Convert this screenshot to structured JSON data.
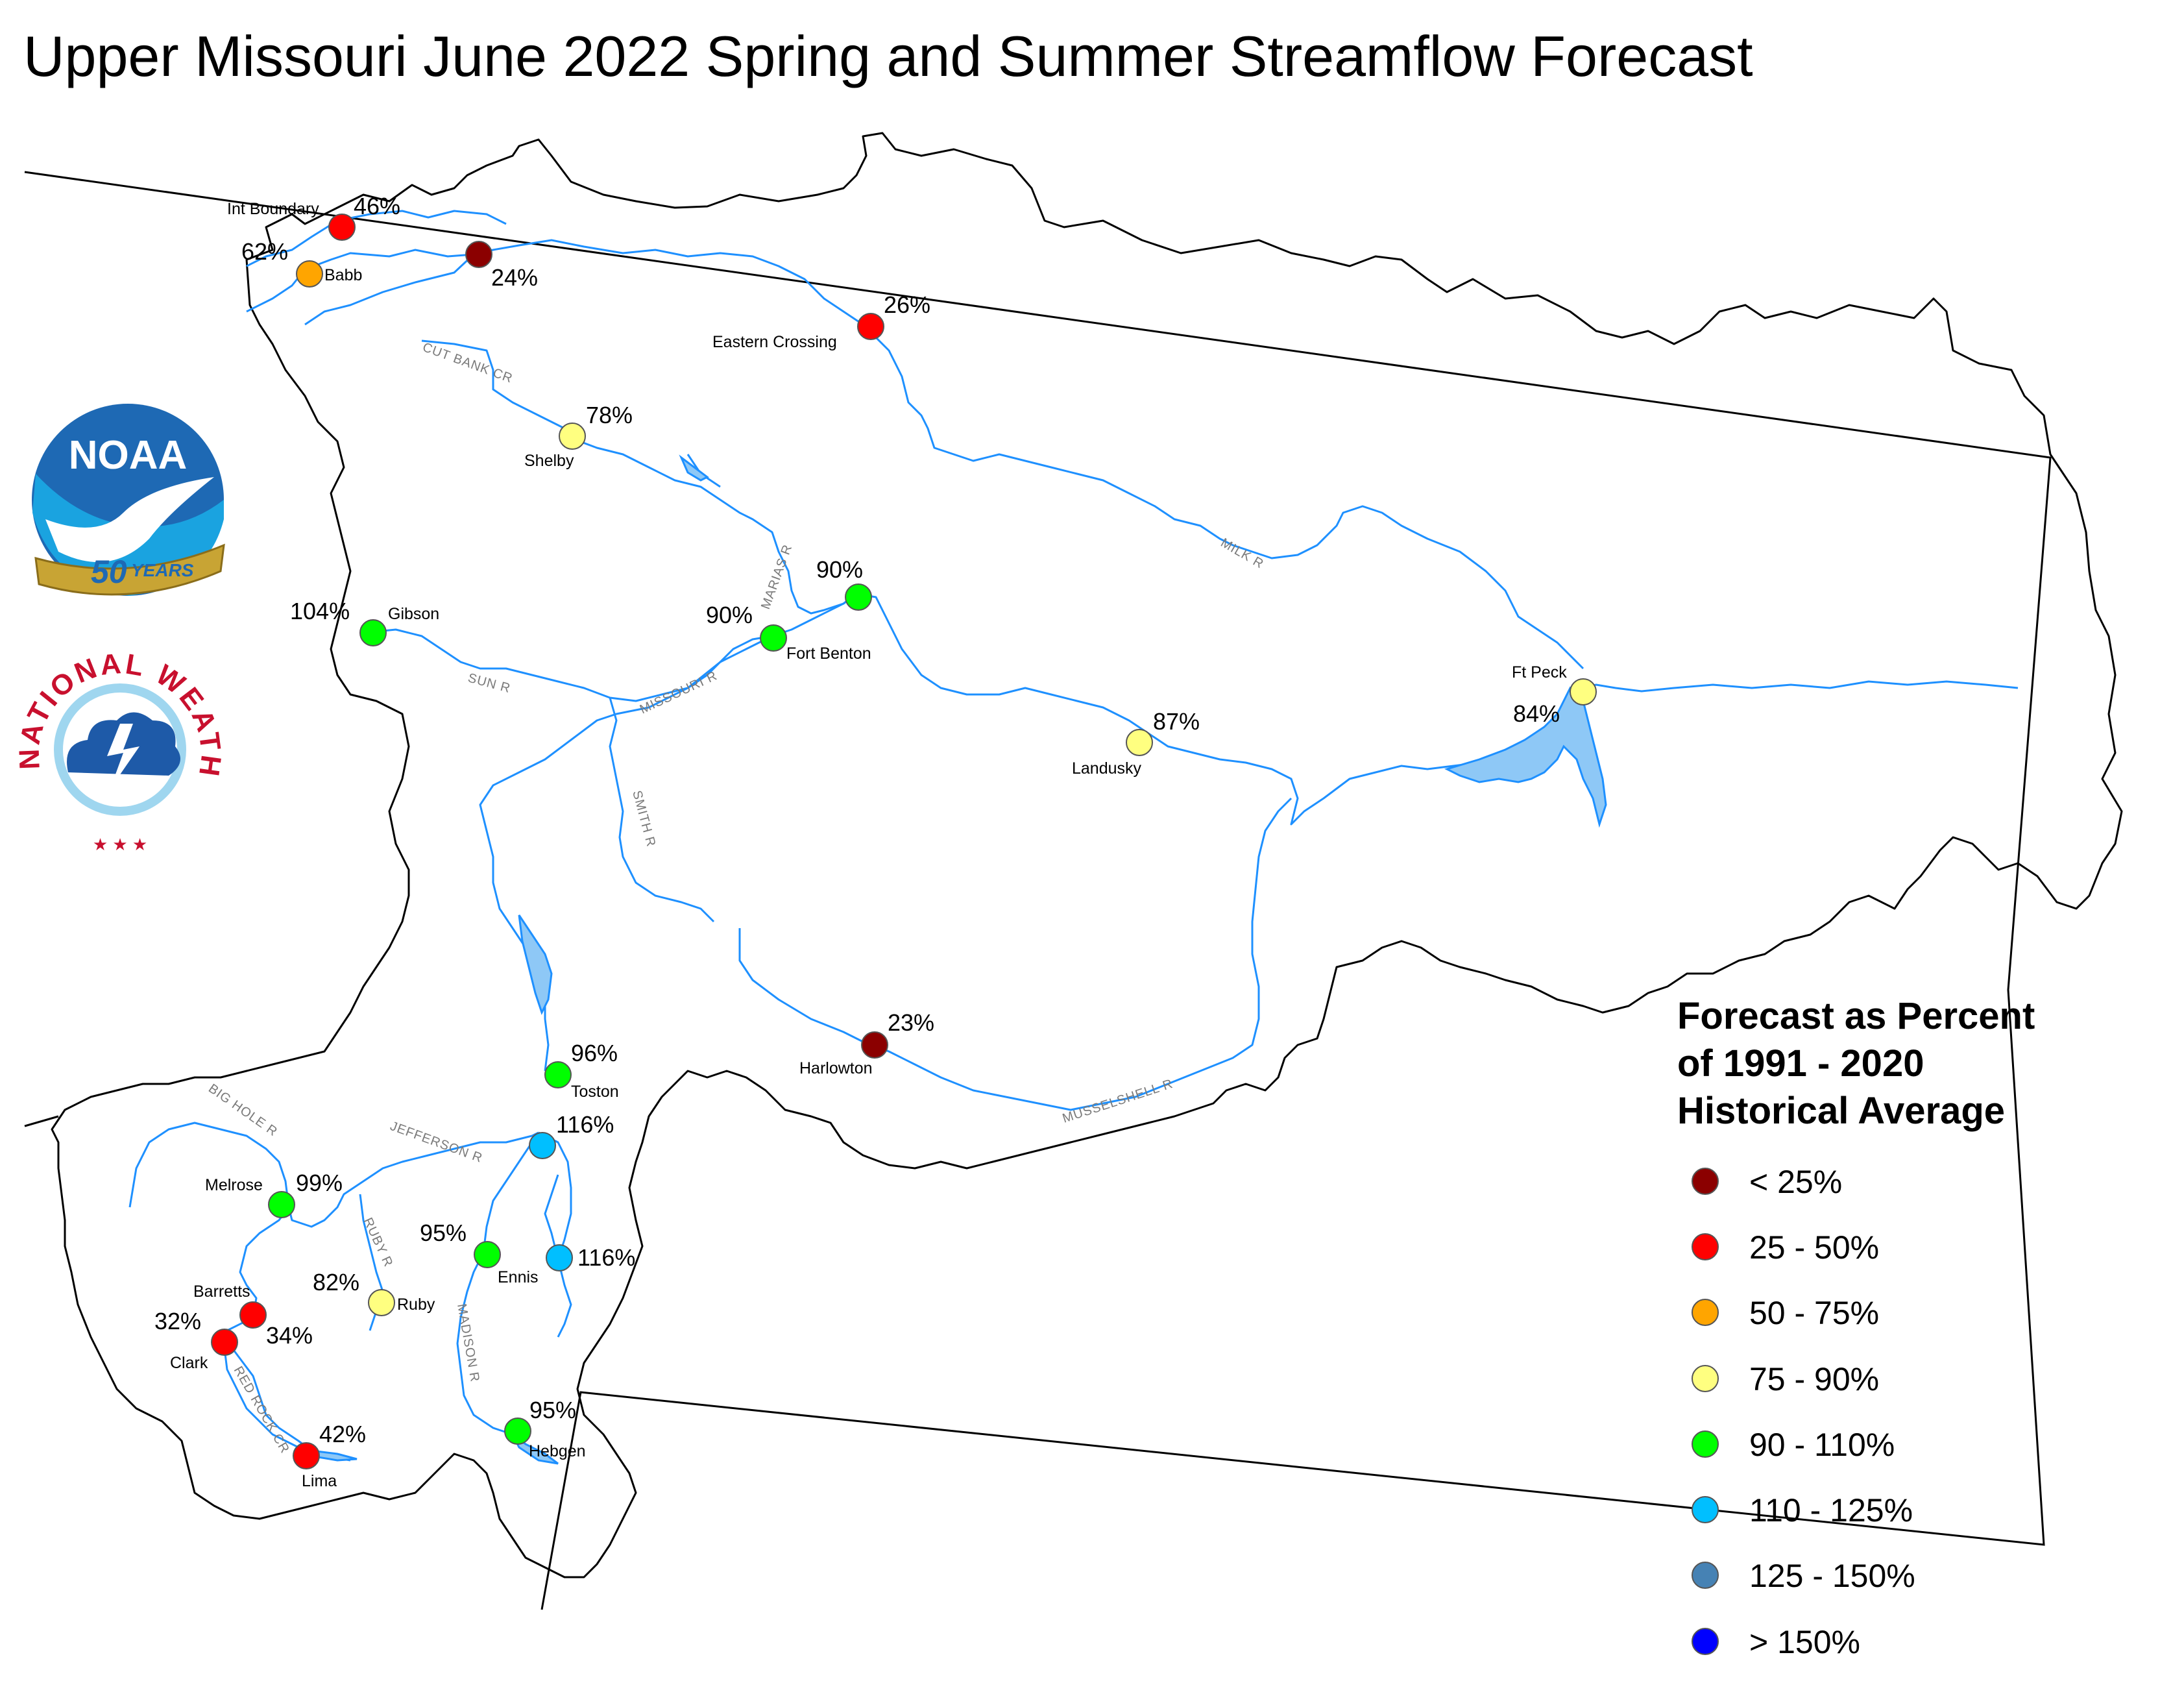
{
  "title": "Upper Missouri June 2022 Spring and Summer Streamflow Forecast",
  "noaa_logo": {
    "text": "NOAA",
    "ribbon_number": "50",
    "ribbon_word": "YEARS",
    "icon": "noaa-50-years-logo"
  },
  "nws_logo": {
    "text": "NATIONAL WEATHER SERVICE",
    "icon": "national-weather-service-logo"
  },
  "legend": {
    "title_lines": [
      "Forecast as Percent",
      "of 1991 - 2020",
      "Historical Average"
    ],
    "items": [
      {
        "label": "< 25%",
        "color": "#8b0000"
      },
      {
        "label": "25 - 50%",
        "color": "#ff0000"
      },
      {
        "label": "50 - 75%",
        "color": "#ffa500"
      },
      {
        "label": "75 - 90%",
        "color": "#ffff80"
      },
      {
        "label": "90 - 110%",
        "color": "#00ff00"
      },
      {
        "label": "110 - 125%",
        "color": "#00bfff"
      },
      {
        "label": "125 - 150%",
        "color": "#4682b4"
      },
      {
        "label": "> 150%",
        "color": "#0000ff"
      }
    ]
  },
  "stations": [
    {
      "name": "Int Boundary",
      "percent": "46%",
      "color": "#ff0000"
    },
    {
      "name": "",
      "percent": "24%",
      "color": "#8b0000"
    },
    {
      "name": "Babb",
      "percent": "62%",
      "color": "#ffa500"
    },
    {
      "name": "Eastern Crossing",
      "percent": "26%",
      "color": "#ff0000"
    },
    {
      "name": "Shelby",
      "percent": "78%",
      "color": "#ffff80"
    },
    {
      "name": "",
      "percent": "90%",
      "color": "#00ff00"
    },
    {
      "name": "Fort Benton",
      "percent": "90%",
      "color": "#00ff00"
    },
    {
      "name": "Gibson",
      "percent": "104%",
      "color": "#00ff00"
    },
    {
      "name": "Landusky",
      "percent": "87%",
      "color": "#ffff80"
    },
    {
      "name": "Ft Peck",
      "percent": "84%",
      "color": "#ffff80"
    },
    {
      "name": "Harlowton",
      "percent": "23%",
      "color": "#8b0000"
    },
    {
      "name": "Toston",
      "percent": "96%",
      "color": "#00ff00"
    },
    {
      "name": "",
      "percent": "116%",
      "color": "#00bfff"
    },
    {
      "name": "Melrose",
      "percent": "99%",
      "color": "#00ff00"
    },
    {
      "name": "Ennis",
      "percent": "95%",
      "color": "#00ff00"
    },
    {
      "name": "",
      "percent": "116%",
      "color": "#00bfff"
    },
    {
      "name": "Ruby",
      "percent": "82%",
      "color": "#ffff80"
    },
    {
      "name": "Barretts",
      "percent": "34%",
      "color": "#ff0000"
    },
    {
      "name": "Clark",
      "percent": "32%",
      "color": "#ff0000"
    },
    {
      "name": "Lima",
      "percent": "42%",
      "color": "#ff0000"
    },
    {
      "name": "Hebgen",
      "percent": "95%",
      "color": "#00ff00"
    }
  ],
  "rivers": [
    "CUT BANK CR",
    "MARIAS R",
    "MILK R",
    "SUN R",
    "MISSOURI R",
    "SMITH R",
    "MUSSELSHELL R",
    "BIG HOLE R",
    "JEFFERSON R",
    "RUBY R",
    "MADISON R",
    "RED ROCK CR"
  ],
  "colors": {
    "river": "#1e90ff",
    "reservoir": "#8ec8f6",
    "outline": "#000000"
  }
}
